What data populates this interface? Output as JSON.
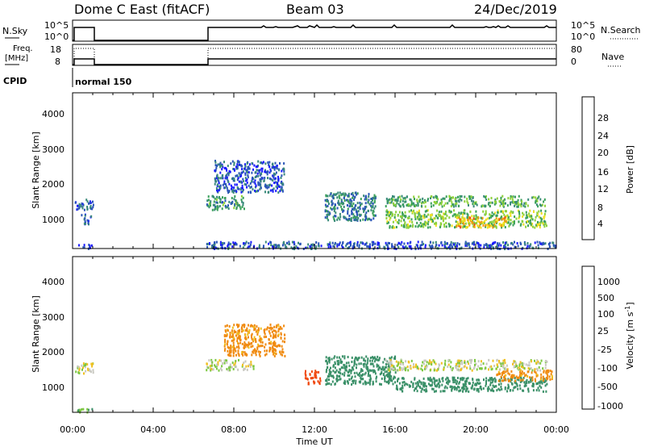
{
  "header": {
    "station": "Dome C East (fitACF)",
    "beam": "Beam 03",
    "date": "24/Dec/2019"
  },
  "panels": {
    "nsky": {
      "label": "N.Sky",
      "tick_top": "10^5",
      "tick_bottom": "10^0",
      "right_top": "10^5",
      "right_bottom": "10^0",
      "right_label": "N.Search"
    },
    "freq": {
      "label1": "Freq.",
      "label2": "[MHz]",
      "tick_top": "18",
      "tick_bottom": "8",
      "right_top": "80",
      "right_bottom": "0",
      "right_label": "Nave"
    },
    "cpid": {
      "label": "CPID",
      "value": "normal 150"
    }
  },
  "x_axis": {
    "label": "Time UT",
    "ticks": [
      "00:00",
      "04:00",
      "08:00",
      "12:00",
      "16:00",
      "20:00",
      "00:00"
    ]
  },
  "power_panel": {
    "ylabel": "Slant Range [km]",
    "yticks": [
      "1000",
      "2000",
      "3000",
      "4000"
    ],
    "cbar_label": "Power [dB]",
    "cbar_ticks": [
      "4",
      "8",
      "12",
      "16",
      "20",
      "24",
      "28"
    ]
  },
  "velocity_panel": {
    "ylabel": "Slant Range [km]",
    "yticks": [
      "1000",
      "2000",
      "3000",
      "4000"
    ],
    "cbar_label": "Velocity [m s",
    "cbar_label_sup": "-1",
    "cbar_ticks": [
      "1000",
      "500",
      "100",
      "25",
      "-25",
      "-100",
      "-500",
      "-1000"
    ]
  },
  "colors": {
    "power_scale": [
      "#1a1aff",
      "#2a55b8",
      "#3a8a7a",
      "#3aa05a",
      "#8ed13a",
      "#f0e020",
      "#f09a10",
      "#f04a10",
      "#e81010"
    ],
    "velocity_scale": [
      "#1a3fd6",
      "#2f6ab0",
      "#3a9068",
      "#7cc840",
      "#c8c8c0",
      "#f0c020",
      "#f08a10",
      "#f04a10",
      "#e81010"
    ]
  },
  "chart_data": [
    {
      "type": "heatmap",
      "title": "",
      "xlabel": "Time UT",
      "ylabel": "Slant Range [km]",
      "x_range_hours": [
        0,
        24
      ],
      "ylim": [
        180,
        4600
      ],
      "colorbar": {
        "label": "Power [dB]",
        "range": [
          0,
          30
        ]
      },
      "regions": [
        {
          "t": [
            0.1,
            1.0
          ],
          "r": [
            1300,
            1600
          ],
          "value": 6
        },
        {
          "t": [
            0.4,
            0.9
          ],
          "r": [
            900,
            1200
          ],
          "value": 5
        },
        {
          "t": [
            0.1,
            1.0
          ],
          "r": [
            200,
            320
          ],
          "value": 4
        },
        {
          "t": [
            6.6,
            8.5
          ],
          "r": [
            1300,
            1700
          ],
          "value": 10
        },
        {
          "t": [
            7.0,
            10.5
          ],
          "r": [
            1800,
            2700
          ],
          "value": 5
        },
        {
          "t": [
            12.5,
            15.0
          ],
          "r": [
            1000,
            1800
          ],
          "value": 8
        },
        {
          "t": [
            15.5,
            23.5
          ],
          "r": [
            1400,
            1700
          ],
          "value": 12
        },
        {
          "t": [
            15.5,
            23.5
          ],
          "r": [
            800,
            1300
          ],
          "value": 14
        },
        {
          "t": [
            19.0,
            21.5
          ],
          "r": [
            800,
            1100
          ],
          "value": 20
        },
        {
          "t": [
            6.6,
            24.0
          ],
          "r": [
            200,
            400
          ],
          "value": 5
        }
      ]
    },
    {
      "type": "heatmap",
      "title": "",
      "xlabel": "Time UT",
      "ylabel": "Slant Range [km]",
      "x_range_hours": [
        0,
        24
      ],
      "ylim": [
        180,
        4600
      ],
      "colorbar": {
        "label": "Velocity [m s-1]",
        "ticks": [
          1000,
          500,
          100,
          25,
          -25,
          -100,
          -500,
          -1000
        ]
      },
      "regions": [
        {
          "t": [
            0.1,
            1.0
          ],
          "r": [
            1300,
            1600
          ],
          "value": 0
        },
        {
          "t": [
            6.6,
            9.0
          ],
          "r": [
            1400,
            1700
          ],
          "value": 0
        },
        {
          "t": [
            7.5,
            10.5
          ],
          "r": [
            1800,
            2700
          ],
          "value": -150
        },
        {
          "t": [
            11.5,
            12.3
          ],
          "r": [
            1000,
            1400
          ],
          "value": -600
        },
        {
          "t": [
            12.5,
            16.0
          ],
          "r": [
            1000,
            1800
          ],
          "value": 200
        },
        {
          "t": [
            15.5,
            23.5
          ],
          "r": [
            1400,
            1700
          ],
          "value": 0
        },
        {
          "t": [
            16.0,
            23.5
          ],
          "r": [
            800,
            1200
          ],
          "value": 200
        },
        {
          "t": [
            21.0,
            23.8
          ],
          "r": [
            1100,
            1400
          ],
          "value": -150
        },
        {
          "t": [
            0.1,
            1.0
          ],
          "r": [
            200,
            320
          ],
          "value": 100
        }
      ]
    }
  ]
}
